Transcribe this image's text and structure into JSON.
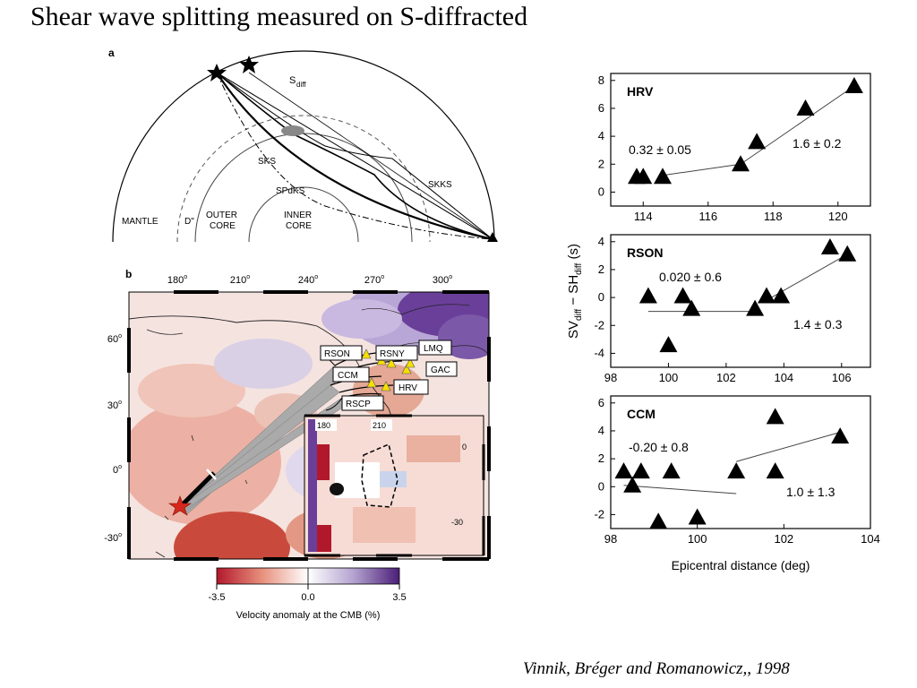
{
  "slide": {
    "title": "Shear wave splitting measured on S-diffracted",
    "citation": "Vinnik, Bréger and Romanowicz,, 1998"
  },
  "panel_a": {
    "label": "a",
    "rays": [
      "S",
      "diff",
      "SKS",
      "SPdKS",
      "SKKS"
    ],
    "regions": {
      "mantle": "MANTLE",
      "dpp": "D\"",
      "outer1": "OUTER",
      "outer2": "CORE",
      "inner1": "INNER",
      "inner2": "CORE"
    }
  },
  "panel_b": {
    "label": "b",
    "lon_ticks": [
      "180",
      "210",
      "240",
      "270",
      "300"
    ],
    "deg_sup": "o",
    "lat_ticks": [
      "60",
      "30",
      "0",
      "-30"
    ],
    "stations": [
      "RSON",
      "RSNY",
      "LMQ",
      "CCM",
      "GAC",
      "HRV",
      "RSCP"
    ],
    "inset_lon": [
      "180",
      "210"
    ],
    "inset_lat": [
      "0",
      "-30"
    ],
    "colorbar": {
      "min": "-3.5",
      "mid": "0.0",
      "max": "3.5",
      "label": "Velocity anomaly at the CMB (%)"
    }
  },
  "chart_data": [
    {
      "type": "scatter",
      "panel": "HRV",
      "xlim": [
        113,
        121
      ],
      "ylim": [
        -1,
        8.5
      ],
      "xticks": [
        "114",
        "116",
        "118",
        "120"
      ],
      "yticks": [
        "0",
        "2",
        "4",
        "6",
        "8"
      ],
      "points": [
        [
          113.8,
          1.1
        ],
        [
          114.0,
          1.1
        ],
        [
          114.6,
          1.1
        ],
        [
          117.0,
          2.0
        ],
        [
          117.5,
          3.6
        ],
        [
          119.0,
          6.0
        ],
        [
          120.5,
          7.6
        ]
      ],
      "fits": [
        {
          "x": [
            114.6,
            117.0
          ],
          "y": [
            1.2,
            2.0
          ]
        },
        {
          "x": [
            117.0,
            120.5
          ],
          "y": [
            2.0,
            7.6
          ]
        }
      ],
      "annotations": [
        "0.32  ± 0.05",
        "1.6  ± 0.2"
      ]
    },
    {
      "type": "scatter",
      "panel": "RSON",
      "xlim": [
        98,
        107
      ],
      "ylim": [
        -5,
        4.5
      ],
      "xticks": [
        "98",
        "100",
        "102",
        "104",
        "106"
      ],
      "yticks": [
        "4",
        "2",
        "0",
        "-2",
        "-4"
      ],
      "points": [
        [
          99.3,
          0.1
        ],
        [
          100.0,
          -3.4
        ],
        [
          100.5,
          0.1
        ],
        [
          100.8,
          -0.8
        ],
        [
          103.0,
          -0.8
        ],
        [
          103.4,
          0.1
        ],
        [
          103.9,
          0.1
        ],
        [
          105.6,
          3.6
        ],
        [
          106.2,
          3.1
        ]
      ],
      "fits": [
        {
          "x": [
            99.3,
            103.0
          ],
          "y": [
            -1.0,
            -1.0
          ]
        },
        {
          "x": [
            103.4,
            106.2
          ],
          "y": [
            -0.2,
            3.1
          ]
        }
      ],
      "annotations": [
        "0.020 ± 0.6",
        "1.4  ± 0.3"
      ]
    },
    {
      "type": "scatter",
      "panel": "CCM",
      "xlim": [
        98,
        104
      ],
      "ylim": [
        -3,
        6.5
      ],
      "xticks": [
        "98",
        "100",
        "102",
        "104"
      ],
      "yticks": [
        "6",
        "4",
        "2",
        "0",
        "-2"
      ],
      "xlabel": "Epicentral distance (deg)",
      "points": [
        [
          98.3,
          1.1
        ],
        [
          98.5,
          0.1
        ],
        [
          98.7,
          1.1
        ],
        [
          99.1,
          -2.5
        ],
        [
          99.4,
          1.1
        ],
        [
          100.0,
          -2.2
        ],
        [
          100.9,
          1.1
        ],
        [
          101.8,
          5.0
        ],
        [
          101.8,
          1.1
        ],
        [
          103.3,
          3.6
        ]
      ],
      "fits": [
        {
          "x": [
            98.3,
            100.9
          ],
          "y": [
            0.1,
            -0.5
          ]
        },
        {
          "x": [
            100.9,
            103.3
          ],
          "y": [
            1.8,
            3.9
          ]
        }
      ],
      "annotations": [
        "-0.20 ± 0.8",
        "1.0  ± 1.3"
      ]
    }
  ],
  "shared_ylabel": {
    "sv": "SV",
    "sh": "SH",
    "sub": "diff",
    "dash": " − ",
    "unit": " (s)"
  }
}
